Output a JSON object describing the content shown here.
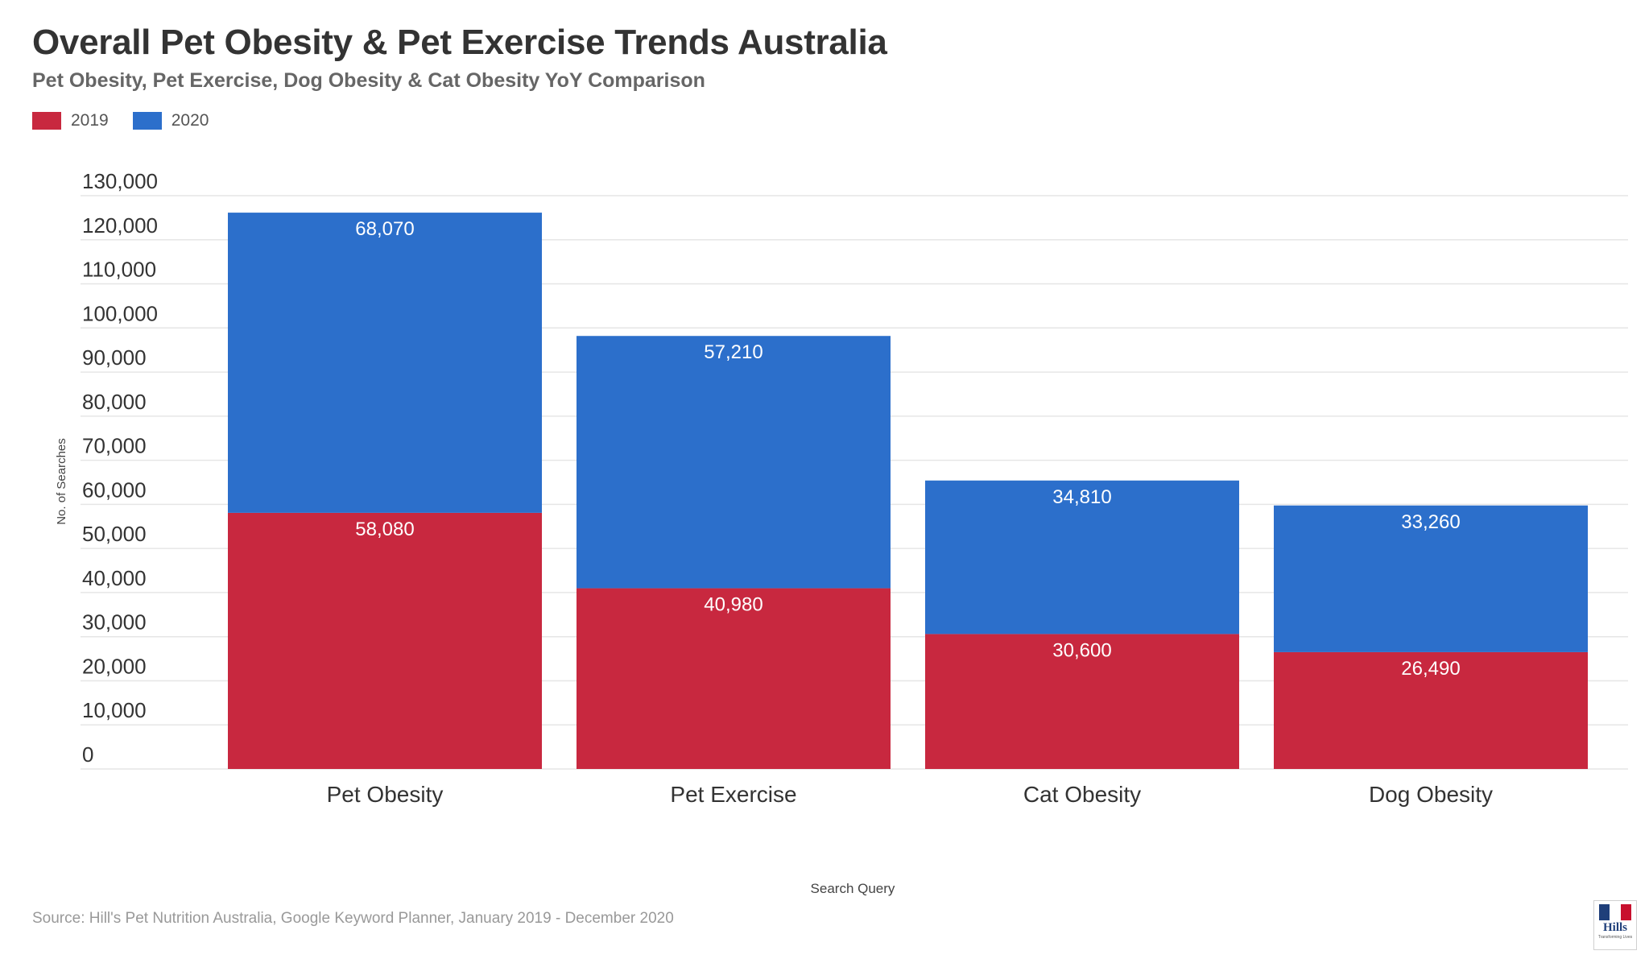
{
  "title": "Overall Pet Obesity & Pet Exercise Trends Australia",
  "subtitle": "Pet Obesity, Pet Exercise, Dog Obesity & Cat Obesity YoY Comparison",
  "source": "Source: Hill's Pet Nutrition Australia, Google Keyword Planner, January 2019 - December 2020",
  "logo": {
    "word": "Hills",
    "tagline": "Transforming Lives"
  },
  "colors": {
    "series_2019": "#c8283f",
    "series_2020": "#2c6fcb",
    "gridline": "#e6e6e6",
    "axis_text": "#333333"
  },
  "chart_data": {
    "type": "bar",
    "stacked": true,
    "categories": [
      "Pet Obesity",
      "Pet Exercise",
      "Cat Obesity",
      "Dog Obesity"
    ],
    "series": [
      {
        "name": "2019",
        "values": [
          58080,
          40980,
          30600,
          26490
        ],
        "labels": [
          "58,080",
          "40,980",
          "30,600",
          "26,490"
        ]
      },
      {
        "name": "2020",
        "values": [
          68070,
          57210,
          34810,
          33260
        ],
        "labels": [
          "68,070",
          "57,210",
          "34,810",
          "33,260"
        ]
      }
    ],
    "yticks": [
      0,
      10000,
      20000,
      30000,
      40000,
      50000,
      60000,
      70000,
      80000,
      90000,
      100000,
      110000,
      120000,
      130000
    ],
    "ytick_labels": [
      "0",
      "10,000",
      "20,000",
      "30,000",
      "40,000",
      "50,000",
      "60,000",
      "70,000",
      "80,000",
      "90,000",
      "100,000",
      "110,000",
      "120,000",
      "130,000"
    ],
    "ylim": [
      0,
      130000
    ],
    "xlabel": "Search Query",
    "ylabel": "No. of Searches",
    "legend_position": "top-left",
    "grid": true
  }
}
